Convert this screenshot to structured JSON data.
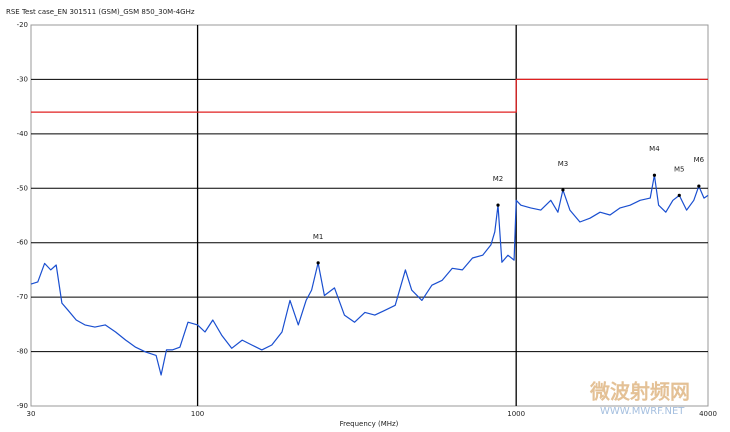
{
  "chart_data": {
    "type": "line",
    "title": "RSE Test case_EN 301511 (GSM)_GSM 850_30M-4GHz",
    "x_label": "Frequency (MHz)",
    "log_x": true,
    "grid": true,
    "xlim": [
      30,
      4000
    ],
    "ylim": [
      -90,
      -20
    ],
    "xticks": [
      30,
      100,
      1000,
      4000
    ],
    "yticks": [
      -20,
      -30,
      -40,
      -50,
      -60,
      -70,
      -80,
      -90
    ],
    "limit": {
      "color": "#e02020",
      "x": [
        30,
        1000,
        1000,
        4000
      ],
      "values": [
        -36,
        -36,
        -30,
        -30
      ]
    },
    "trace": {
      "color": "#1a4fd0",
      "x": [
        30,
        31.5,
        33.1,
        34.6,
        36.0,
        37.5,
        39.2,
        41.6,
        44.3,
        47.6,
        51.3,
        55.3,
        59.5,
        63.9,
        68.8,
        74.1,
        76.8,
        79.9,
        83.3,
        88.0,
        93.3,
        100,
        105.5,
        111.6,
        119,
        128,
        138,
        148,
        159,
        171,
        184,
        195,
        207,
        219,
        228,
        239,
        250,
        269,
        289,
        311,
        335,
        360,
        388,
        417,
        449,
        470,
        506,
        544,
        586,
        630,
        678,
        729,
        785,
        833,
        857,
        877,
        902,
        942,
        985,
        1000,
        1035,
        1111,
        1195,
        1284,
        1352,
        1402,
        1474,
        1585,
        1705,
        1834,
        1970,
        2119,
        2278,
        2449,
        2634,
        2716,
        2800,
        2948,
        3104,
        3250,
        3428,
        3611,
        3744,
        3885,
        4000
      ],
      "values": [
        -67.6,
        -67.2,
        -63.8,
        -65.0,
        -64.1,
        -71.1,
        -72.4,
        -74.2,
        -75.1,
        -75.5,
        -75.1,
        -76.4,
        -77.9,
        -79.2,
        -80.1,
        -80.7,
        -84.3,
        -79.7,
        -79.7,
        -79.2,
        -74.6,
        -75.1,
        -76.4,
        -74.2,
        -77.0,
        -79.4,
        -77.9,
        -78.8,
        -79.7,
        -78.8,
        -76.4,
        -70.6,
        -75.1,
        -70.6,
        -68.7,
        -63.7,
        -69.7,
        -68.3,
        -73.3,
        -74.6,
        -72.8,
        -73.3,
        -72.4,
        -71.5,
        -65.0,
        -68.7,
        -70.6,
        -67.8,
        -66.9,
        -64.7,
        -65.0,
        -62.8,
        -62.3,
        -60.4,
        -58.0,
        -53.1,
        -63.6,
        -62.3,
        -63.2,
        -52.2,
        -53.1,
        -53.6,
        -54.0,
        -52.2,
        -54.4,
        -50.3,
        -54.0,
        -56.2,
        -55.5,
        -54.4,
        -54.9,
        -53.6,
        -53.1,
        -52.2,
        -51.8,
        -47.6,
        -53.1,
        -54.4,
        -52.2,
        -51.3,
        -54.0,
        -52.2,
        -49.6,
        -51.8,
        -51.3
      ]
    },
    "markers": [
      {
        "label": "M1",
        "x": 239,
        "y": -63.7
      },
      {
        "label": "M2",
        "x": 877,
        "y": -53.1
      },
      {
        "label": "M3",
        "x": 1402,
        "y": -50.3
      },
      {
        "label": "M4",
        "x": 2716,
        "y": -47.6
      },
      {
        "label": "M5",
        "x": 3250,
        "y": -51.3
      },
      {
        "label": "M6",
        "x": 3744,
        "y": -49.6
      }
    ],
    "watermark": [
      "微波射频网",
      "WWW.MWRF.NET"
    ]
  }
}
